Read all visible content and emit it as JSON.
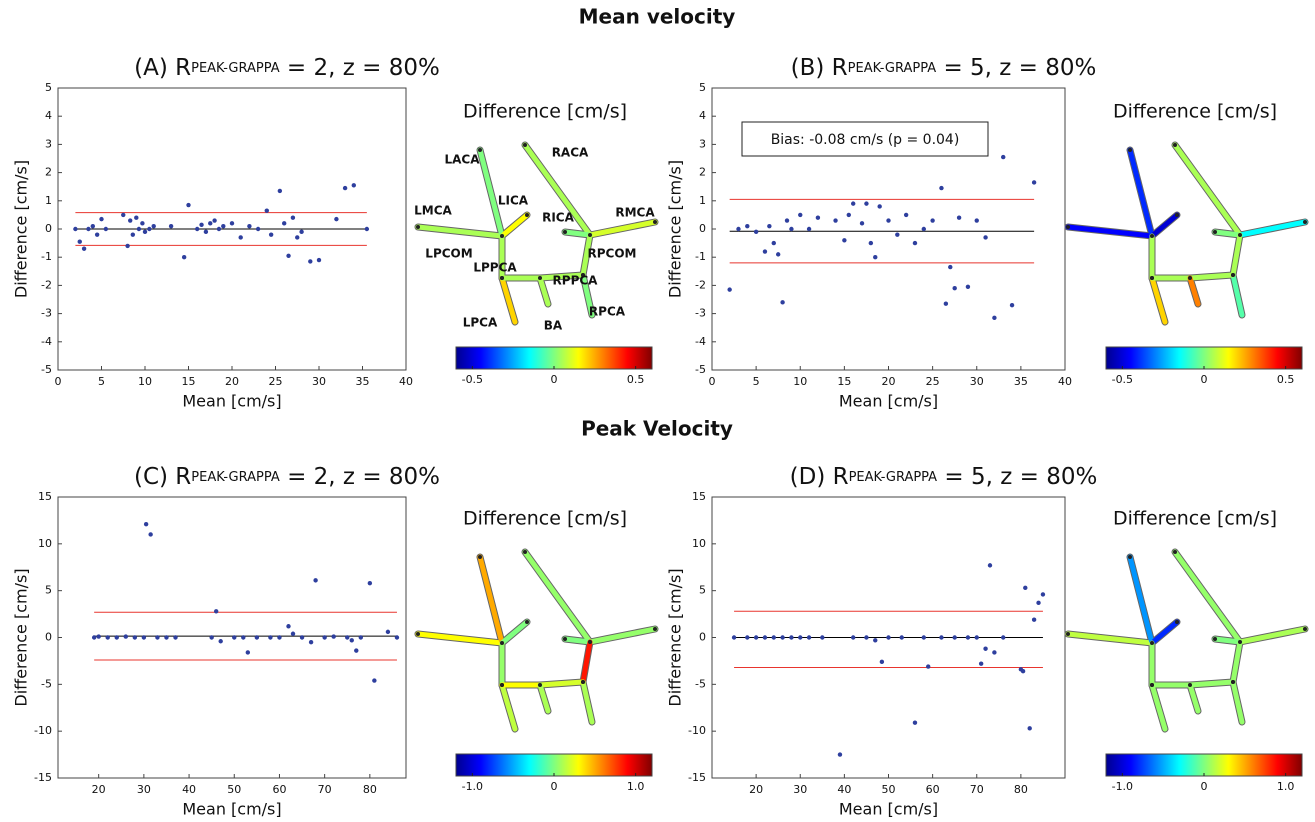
{
  "headings": [
    "Mean velocity",
    "Peak Velocity"
  ],
  "chart_data": [
    {
      "type": "scatter",
      "title": {
        "prefix": "(A) R",
        "subscript": "PEAK-GRAPPA",
        "suffix": " = 2, z = 80%"
      },
      "x_label": "Mean [cm/s]",
      "y_label": "Difference [cm/s]",
      "color": "#2e3f9e",
      "loa_color": "#e8352e",
      "bias_color": "#000000",
      "x": [
        2,
        2.5,
        3,
        3.5,
        4,
        4.5,
        5,
        5.5,
        7.5,
        8,
        8.3,
        8.6,
        9,
        9.3,
        9.7,
        10,
        10.5,
        11,
        13,
        14.5,
        15,
        16,
        16.5,
        17,
        17.5,
        18,
        18.5,
        19,
        20,
        21,
        22,
        23,
        24,
        24.5,
        25.5,
        26,
        26.5,
        27,
        27.5,
        28,
        29,
        30,
        32,
        33,
        34,
        35.5
      ],
      "y": [
        0,
        -0.45,
        -0.7,
        0,
        0.1,
        -0.2,
        0.35,
        0,
        0.5,
        -0.6,
        0.3,
        -0.2,
        0.4,
        0,
        0.2,
        -0.1,
        0,
        0.1,
        0.1,
        -1.0,
        0.85,
        0,
        0.15,
        -0.1,
        0.2,
        0.3,
        0,
        0.1,
        0.2,
        -0.3,
        0.1,
        0,
        0.65,
        -0.2,
        1.35,
        0.2,
        -0.95,
        0.4,
        -0.3,
        -0.1,
        -1.15,
        -1.1,
        0.35,
        1.45,
        1.55,
        0
      ],
      "bias": 0,
      "loa": [
        -0.58,
        0.58
      ],
      "xlim": [
        0,
        40
      ],
      "xticks": [
        0,
        5,
        10,
        15,
        20,
        25,
        30,
        35,
        40
      ],
      "ylim": [
        -5,
        5
      ],
      "yticks": [
        -5,
        -4,
        -3,
        -2,
        -1,
        0,
        1,
        2,
        3,
        4,
        5
      ],
      "diagram": {
        "title": "Difference [cm/s]",
        "clim": [
          -0.6,
          0.6
        ],
        "cticks": [
          -0.5,
          0,
          0.5
        ],
        "labels": [
          "LMCA",
          "LACA",
          "LICA",
          "LPCOM",
          "LPCA",
          "LPPCA",
          "RACA",
          "RMCA",
          "RICA",
          "RPCOM",
          "RPCA",
          "RPPCA",
          "BA"
        ],
        "values": [
          0.05,
          0.0,
          0.15,
          0.05,
          0.2,
          0.05,
          0.05,
          0.1,
          0.0,
          0.05,
          0.0,
          0.05,
          0.05
        ]
      }
    },
    {
      "type": "scatter",
      "title": {
        "prefix": "(B) R",
        "subscript": "PEAK-GRAPPA",
        "suffix": " = 5, z = 80%"
      },
      "x_label": "Mean [cm/s]",
      "y_label": "Difference [cm/s]",
      "color": "#2e3f9e",
      "loa_color": "#e8352e",
      "bias_color": "#000000",
      "annotation": "Bias: -0.08 cm/s (p = 0.04)",
      "x": [
        2,
        3,
        4,
        5,
        6,
        6.5,
        7,
        7.5,
        8,
        8.5,
        9,
        10,
        11,
        12,
        14,
        15,
        15.5,
        16,
        17,
        17.5,
        18,
        18.5,
        19,
        20,
        21,
        22,
        23,
        24,
        25,
        26,
        26.5,
        27,
        27.5,
        28,
        29,
        30,
        31,
        32,
        33,
        34,
        36.5
      ],
      "y": [
        -2.15,
        0,
        0.1,
        -0.1,
        -0.8,
        0.1,
        -0.5,
        -0.9,
        -2.6,
        0.3,
        0,
        0.5,
        0,
        0.4,
        0.3,
        -0.4,
        0.5,
        0.9,
        0.2,
        0.9,
        -0.5,
        -1.0,
        0.8,
        0.3,
        -0.2,
        0.5,
        -0.5,
        0,
        0.3,
        1.45,
        -2.65,
        -1.35,
        -2.1,
        0.4,
        -2.05,
        0.3,
        -0.3,
        -3.15,
        2.55,
        -2.7,
        1.65
      ],
      "bias": -0.08,
      "loa": [
        -1.2,
        1.05
      ],
      "xlim": [
        0,
        40
      ],
      "xticks": [
        0,
        5,
        10,
        15,
        20,
        25,
        30,
        35,
        40
      ],
      "ylim": [
        -5,
        5
      ],
      "yticks": [
        -5,
        -4,
        -3,
        -2,
        -1,
        0,
        1,
        2,
        3,
        4,
        5
      ],
      "diagram": {
        "title": "Difference [cm/s]",
        "clim": [
          -0.6,
          0.6
        ],
        "cticks": [
          -0.5,
          0,
          0.5
        ],
        "values": [
          -0.45,
          -0.4,
          -0.5,
          0.05,
          0.2,
          0.05,
          0.05,
          -0.15,
          0.0,
          0.05,
          -0.05,
          0.05,
          0.3
        ]
      }
    },
    {
      "type": "scatter",
      "title": {
        "prefix": "(C) R",
        "subscript": "PEAK-GRAPPA",
        "suffix": " = 2, z = 80%"
      },
      "x_label": "Mean [cm/s]",
      "y_label": "Difference [cm/s]",
      "color": "#2e3f9e",
      "loa_color": "#e8352e",
      "bias_color": "#000000",
      "x": [
        19,
        20,
        22,
        24,
        26,
        28,
        30,
        30.5,
        31.5,
        33,
        35,
        37,
        45,
        46,
        47,
        50,
        52,
        53,
        55,
        58,
        60,
        62,
        63,
        65,
        67,
        68,
        70,
        72,
        75,
        76,
        77,
        78,
        80,
        81,
        84,
        86
      ],
      "y": [
        0,
        0.1,
        0,
        0,
        0.1,
        0,
        0,
        12.1,
        11,
        0,
        0,
        0,
        0,
        2.8,
        -0.4,
        0,
        0,
        -1.6,
        0,
        0,
        0,
        1.2,
        0.4,
        0,
        -0.5,
        6.1,
        0,
        0.1,
        0,
        -0.3,
        -1.4,
        0,
        5.8,
        -4.6,
        0.6,
        0
      ],
      "bias": 0.15,
      "loa": [
        -2.4,
        2.7
      ],
      "xlim": [
        11,
        88
      ],
      "xticks": [
        20,
        30,
        40,
        50,
        60,
        70,
        80
      ],
      "ylim": [
        -15,
        15
      ],
      "yticks": [
        -15,
        -10,
        -5,
        0,
        5,
        10,
        15
      ],
      "diagram": {
        "title": "Difference [cm/s]",
        "clim": [
          -1.2,
          1.2
        ],
        "cticks": [
          {
            "value": -1,
            "label": "-1.0"
          },
          0,
          {
            "value": 1,
            "label": "1.0"
          }
        ],
        "values": [
          0.3,
          0.5,
          0.0,
          0.05,
          0.15,
          0.3,
          0.05,
          0.05,
          0.0,
          0.85,
          0.1,
          0.2,
          0.1
        ]
      }
    },
    {
      "type": "scatter",
      "title": {
        "prefix": "(D) R",
        "subscript": "PEAK-GRAPPA",
        "suffix": " = 5, z = 80%"
      },
      "x_label": "Mean [cm/s]",
      "y_label": "Difference [cm/s]",
      "color": "#2e3f9e",
      "loa_color": "#e8352e",
      "bias_color": "#000000",
      "x": [
        15,
        18,
        20,
        22,
        24,
        26,
        28,
        30,
        32,
        35,
        39,
        42,
        45,
        47,
        48.5,
        50,
        53,
        56,
        58,
        59,
        62,
        65,
        68,
        70,
        71,
        72,
        73,
        74,
        76,
        80,
        80.5,
        81,
        82,
        83,
        84,
        85
      ],
      "y": [
        0,
        0,
        0,
        0,
        0,
        0,
        0,
        0,
        0,
        0,
        -12.5,
        0,
        0,
        -0.3,
        -2.6,
        0,
        0,
        -9.1,
        0,
        -3.1,
        0,
        0,
        0,
        0,
        -2.8,
        -1.2,
        7.7,
        -1.6,
        0,
        -3.4,
        -3.6,
        5.3,
        -9.7,
        1.9,
        3.7,
        4.6
      ],
      "bias": 0,
      "loa": [
        -3.2,
        2.8
      ],
      "xlim": [
        10,
        90
      ],
      "xticks": [
        20,
        30,
        40,
        50,
        60,
        70,
        80
      ],
      "ylim": [
        -15,
        15
      ],
      "yticks": [
        -15,
        -10,
        -5,
        0,
        5,
        10,
        15
      ],
      "diagram": {
        "title": "Difference [cm/s]",
        "clim": [
          -1.2,
          1.2
        ],
        "cticks": [
          {
            "value": -1,
            "label": "-1.0"
          },
          0,
          {
            "value": 1,
            "label": "1.0"
          }
        ],
        "values": [
          0.15,
          -0.55,
          -0.8,
          0.05,
          0.05,
          0.05,
          0.05,
          0.1,
          0.0,
          0.05,
          0.05,
          0.05,
          0.05
        ]
      }
    }
  ]
}
